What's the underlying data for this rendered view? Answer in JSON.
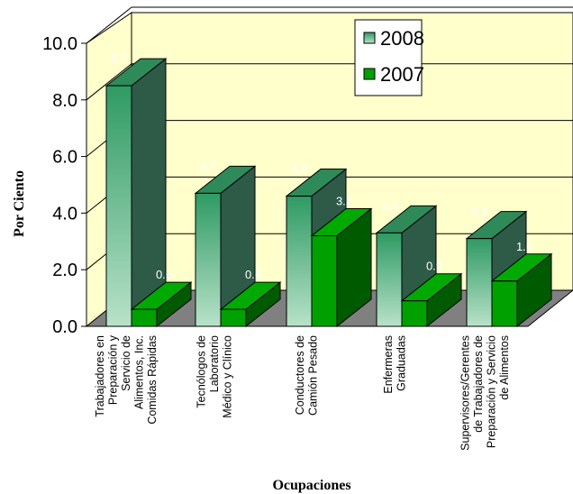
{
  "chart_data": {
    "type": "bar",
    "title": "",
    "xlabel": "Ocupaciones",
    "ylabel": "Por Ciento",
    "ylim": [
      0,
      10
    ],
    "yticks": [
      "0.0",
      "2.0",
      "4.0",
      "6.0",
      "8.0",
      "10.0"
    ],
    "grid": true,
    "legend_position": "top-right",
    "categories": [
      [
        "Trabajadores en",
        "Preparación y",
        "Servicio de",
        "Alimentos, Inc.",
        "Comidas Rápidas"
      ],
      [
        "Tecnólogos de",
        "Laboratorio",
        "Médico y Clínico"
      ],
      [
        "Conductores de",
        "Camión Pesado"
      ],
      [
        "Enfermeras",
        "Graduadas"
      ],
      [
        "Supervisores/Gerentes",
        "de Trabajadores de",
        "Preparación y Servicio",
        "de Alimentos"
      ]
    ],
    "series": [
      {
        "name": "2008",
        "values": [
          8.5,
          4.7,
          4.6,
          3.3,
          3.1
        ],
        "labels": [
          "8.5",
          "4.7",
          "4.6",
          "3.3",
          "3.1"
        ],
        "color": "#3aa36e"
      },
      {
        "name": "2007",
        "values": [
          0.6,
          0.6,
          3.2,
          0.9,
          1.6
        ],
        "labels": [
          "0.6",
          "0.6",
          "3.2",
          "0.9",
          "1.6"
        ],
        "color": "#00a000"
      }
    ]
  }
}
